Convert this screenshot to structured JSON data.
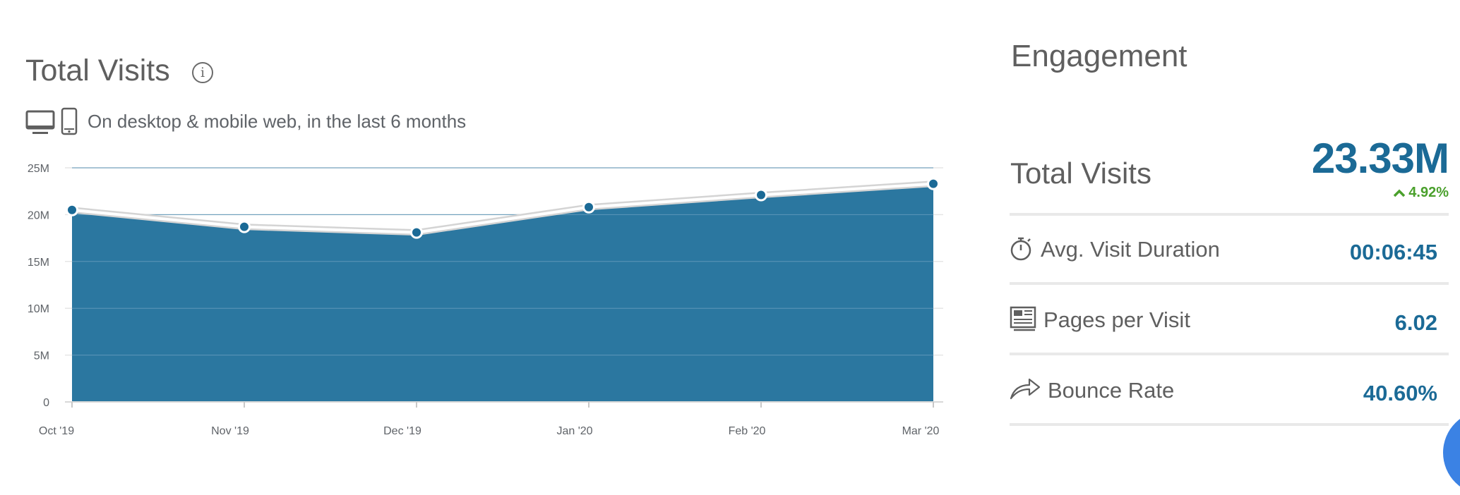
{
  "total_visits_panel": {
    "title": "Total Visits",
    "info_icon": "info-icon",
    "subtitle": "On desktop & mobile web, in the last 6 months",
    "device_icons": [
      "desktop-icon",
      "mobile-icon"
    ]
  },
  "chart_data": {
    "type": "area",
    "categories": [
      "Oct '19",
      "Nov '19",
      "Dec '19",
      "Jan '20",
      "Feb '20",
      "Mar '20"
    ],
    "values": [
      20.5,
      18.7,
      18.1,
      20.8,
      22.1,
      23.3
    ],
    "unit": "M",
    "ylim": [
      0,
      25
    ],
    "yticks": [
      "0",
      "5M",
      "10M",
      "15M",
      "20M",
      "25M"
    ],
    "grid": true,
    "color": "#2b77a0"
  },
  "engagement": {
    "title": "Engagement",
    "total_visits": {
      "label": "Total Visits",
      "value": "23.33M",
      "change": "4.92%",
      "change_color": "#4aa02c"
    },
    "metrics": [
      {
        "label": "Avg. Visit Duration",
        "value": "00:06:45",
        "icon": "stopwatch-icon"
      },
      {
        "label": "Pages per Visit",
        "value": "6.02",
        "icon": "pages-icon"
      },
      {
        "label": "Bounce Rate",
        "value": "40.60%",
        "icon": "bounce-arrow-icon"
      }
    ],
    "value_color": "#1b6a96"
  }
}
